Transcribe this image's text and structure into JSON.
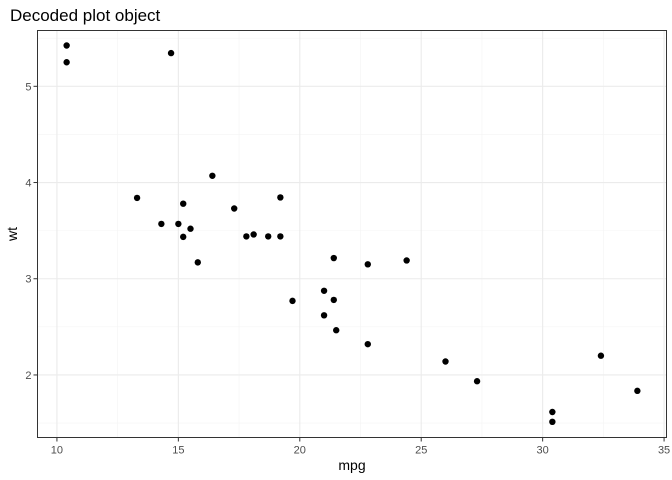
{
  "chart_data": {
    "type": "scatter",
    "title": "Decoded plot object",
    "xlabel": "mpg",
    "ylabel": "wt",
    "xlim": [
      9.2,
      35.1
    ],
    "ylim": [
      1.35,
      5.58
    ],
    "x_ticks": [
      10,
      15,
      20,
      25,
      30,
      35
    ],
    "y_ticks": [
      2,
      3,
      4,
      5
    ],
    "x_minor": [
      12.5,
      17.5,
      22.5,
      27.5,
      32.5
    ],
    "y_minor": [
      1.5,
      2.5,
      3.5,
      4.5,
      5.5
    ],
    "grid": true,
    "point_color": "#000000",
    "points": [
      {
        "x": 21.0,
        "y": 2.62
      },
      {
        "x": 21.0,
        "y": 2.875
      },
      {
        "x": 22.8,
        "y": 2.32
      },
      {
        "x": 21.4,
        "y": 3.215
      },
      {
        "x": 18.7,
        "y": 3.44
      },
      {
        "x": 18.1,
        "y": 3.46
      },
      {
        "x": 14.3,
        "y": 3.57
      },
      {
        "x": 24.4,
        "y": 3.19
      },
      {
        "x": 22.8,
        "y": 3.15
      },
      {
        "x": 19.2,
        "y": 3.44
      },
      {
        "x": 17.8,
        "y": 3.44
      },
      {
        "x": 16.4,
        "y": 4.07
      },
      {
        "x": 17.3,
        "y": 3.73
      },
      {
        "x": 15.2,
        "y": 3.78
      },
      {
        "x": 10.4,
        "y": 5.25
      },
      {
        "x": 10.4,
        "y": 5.424
      },
      {
        "x": 14.7,
        "y": 5.345
      },
      {
        "x": 32.4,
        "y": 2.2
      },
      {
        "x": 30.4,
        "y": 1.615
      },
      {
        "x": 33.9,
        "y": 1.835
      },
      {
        "x": 21.5,
        "y": 2.465
      },
      {
        "x": 15.5,
        "y": 3.52
      },
      {
        "x": 15.2,
        "y": 3.435
      },
      {
        "x": 13.3,
        "y": 3.84
      },
      {
        "x": 19.2,
        "y": 3.845
      },
      {
        "x": 27.3,
        "y": 1.935
      },
      {
        "x": 26.0,
        "y": 2.14
      },
      {
        "x": 30.4,
        "y": 1.513
      },
      {
        "x": 15.8,
        "y": 3.17
      },
      {
        "x": 19.7,
        "y": 2.77
      },
      {
        "x": 15.0,
        "y": 3.57
      },
      {
        "x": 21.4,
        "y": 2.78
      }
    ]
  }
}
